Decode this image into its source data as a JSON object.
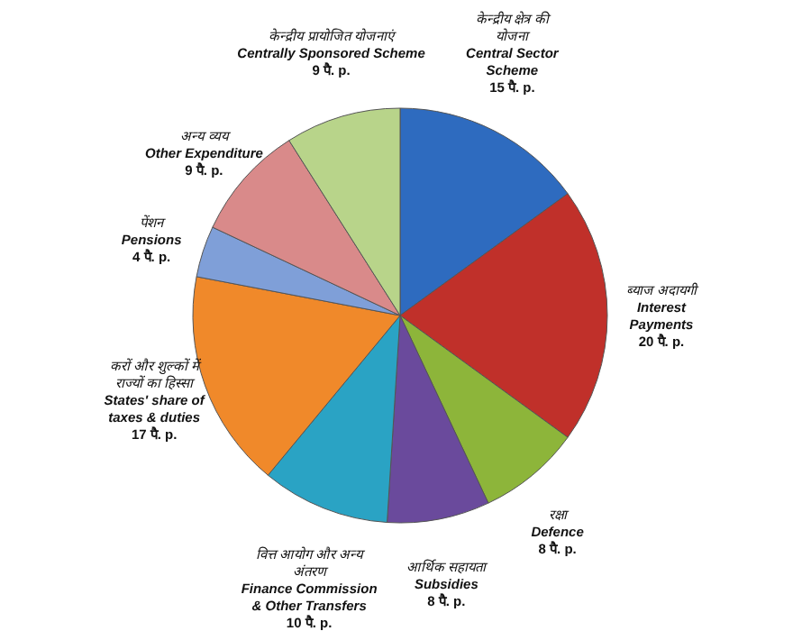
{
  "chart_data": {
    "type": "pie",
    "categories": [
      "केन्द्रीय क्षेत्र की\nयोजना\nCentral Sector\nScheme",
      "ब्याज अदायगी\nInterest\nPayments",
      "रक्षा\nDefence",
      "आर्थिक सहायता\nSubsidies",
      "वित्त आयोग और अन्य\nअंतरण\nFinance Commission\n& Other Transfers",
      "करों और शुल्कों में\nराज्यों का हिस्सा\nStates' share of\ntaxes & duties",
      "पेंशन\nPensions",
      "अन्य व्यय\nOther Expenditure",
      "केन्द्रीय प्रायोजित योजनाएं\nCentrally Sponsored Scheme"
    ],
    "values": [
      15,
      20,
      8,
      8,
      10,
      17,
      4,
      9,
      9
    ],
    "value_labels": [
      "15 पै. p.",
      "20 पै. p.",
      "8 पै. p.",
      "8 पै. p.",
      "10 पै. p.",
      "17 पै. p.",
      "4 पै. p.",
      "9 पै. p.",
      "9 पै. p."
    ],
    "colors": [
      "#2e6bbf",
      "#c0302a",
      "#8db53a",
      "#6a4a9c",
      "#2aa3c4",
      "#f0892a",
      "#7f9fd8",
      "#d98a8a",
      "#b8d48a"
    ]
  }
}
